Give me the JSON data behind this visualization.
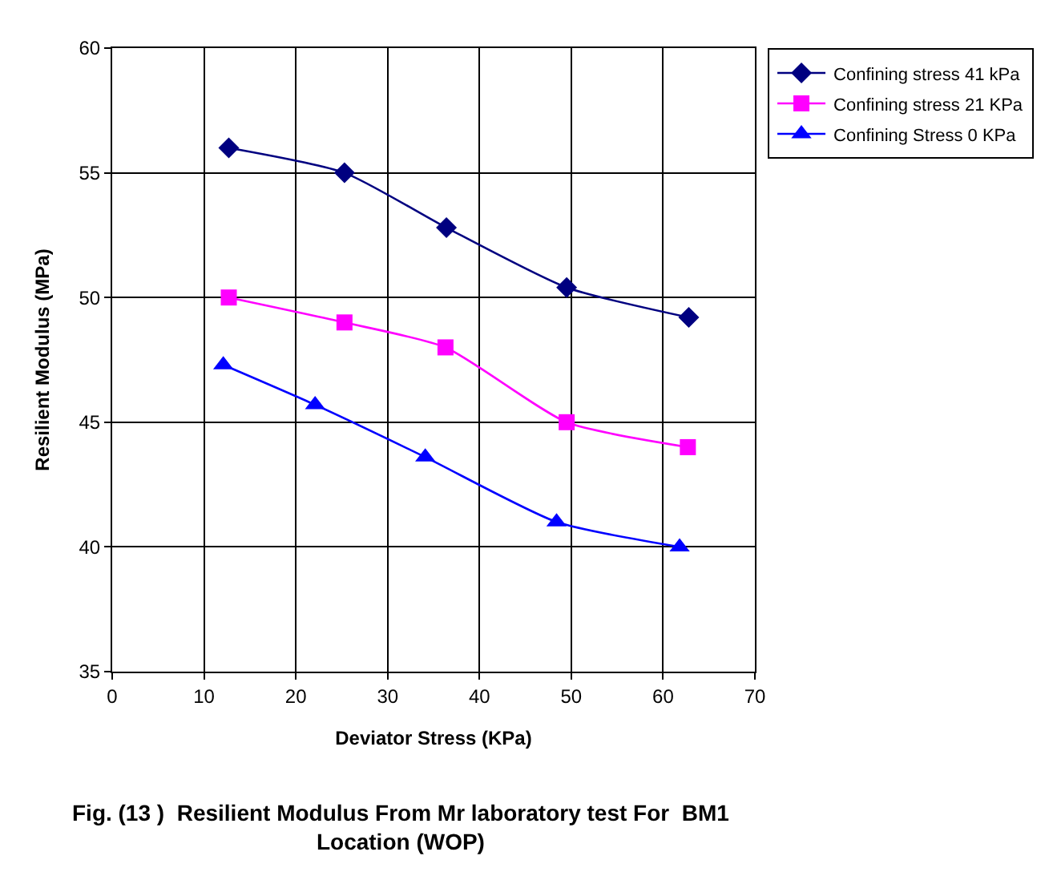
{
  "chart_data": {
    "type": "line",
    "xlabel": "Deviator Stress (KPa)",
    "ylabel": "Resilient Modulus (MPa)",
    "xlim": [
      0,
      70
    ],
    "xticks": [
      0,
      10,
      20,
      30,
      40,
      50,
      60,
      70
    ],
    "ylim": [
      35,
      60
    ],
    "yticks": [
      35,
      40,
      45,
      50,
      55,
      60
    ],
    "grid": true,
    "legend": "top right",
    "line_style": "solid",
    "series": [
      {
        "name": "Confining stress 41 kPa",
        "color": "#000080",
        "marker": "diamond",
        "x": [
          12.7,
          25.3,
          36.4,
          49.5,
          62.8
        ],
        "values": [
          56.0,
          55.0,
          52.8,
          50.4,
          49.2
        ]
      },
      {
        "name": "Confining stress 21 KPa",
        "color": "#ff00ff",
        "marker": "square",
        "x": [
          12.7,
          25.3,
          36.3,
          49.5,
          62.7
        ],
        "values": [
          50.0,
          49.0,
          48.0,
          45.0,
          44.0
        ]
      },
      {
        "name": "Confining Stress 0 KPa",
        "color": "#0000ff",
        "marker": "triangle",
        "x": [
          12.1,
          22.1,
          34.1,
          48.4,
          61.8
        ],
        "values": [
          47.3,
          45.7,
          43.6,
          41.0,
          40.0
        ]
      }
    ],
    "annotations": [
      "Fig. (13 )  Resilient Modulus From Mr laboratory test For  BM1\nLocation (WOP)"
    ]
  }
}
